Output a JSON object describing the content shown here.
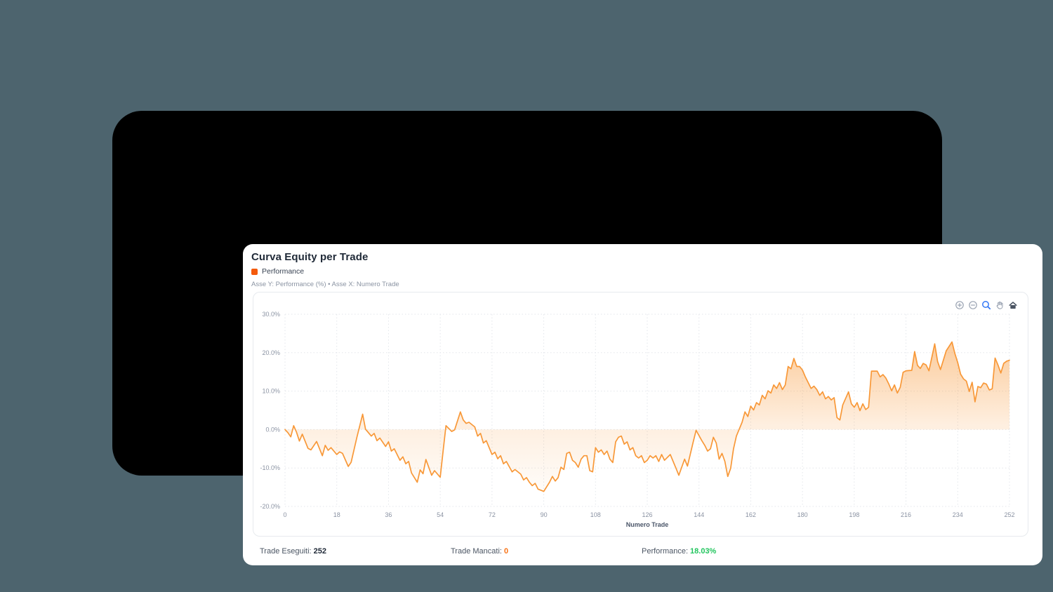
{
  "page": {
    "background_color": "#4d646e"
  },
  "header": {
    "title": "Curva Equity per Trade",
    "legend_label": "Performance",
    "legend_color": "#f45a0c",
    "subtitle": "Asse Y: Performance (%) • Asse X: Numero Trade"
  },
  "modebar": {
    "items": [
      "zoom-in",
      "zoom-out",
      "box-zoom",
      "pan",
      "reset-home"
    ],
    "active_color": "#3478f6",
    "idle_color": "#9aa3b2",
    "home_color": "#4a5462"
  },
  "footer": {
    "items": [
      {
        "label": "Trade Eseguiti:",
        "value": "252",
        "value_color": "#1f2937"
      },
      {
        "label": "Trade Mancati:",
        "value": "0",
        "value_color": "#f97316"
      },
      {
        "label": "Performance:",
        "value": "18.03%",
        "value_color": "#22c55e"
      }
    ]
  },
  "chart_data": {
    "type": "area",
    "title": "Curva Equity per Trade",
    "xlabel": "Numero Trade",
    "ylabel": "Performance (%)",
    "xlim": [
      0,
      252
    ],
    "ylim": [
      -20,
      30
    ],
    "x_ticks": [
      0,
      18,
      36,
      54,
      72,
      90,
      108,
      126,
      144,
      162,
      180,
      198,
      216,
      234,
      252
    ],
    "y_ticks": [
      -20,
      -10,
      0,
      10,
      20,
      30
    ],
    "grid": true,
    "legend_position": "top-left-header",
    "line_color": "#f89838",
    "fill_mode": "gradient-to-zero",
    "fill_color": "#f89838",
    "series": [
      {
        "name": "Performance",
        "points": [
          [
            0,
            0
          ],
          [
            1,
            -0.8
          ],
          [
            2,
            -1.9
          ],
          [
            3,
            1
          ],
          [
            4,
            -0.7
          ],
          [
            5,
            -3
          ],
          [
            6,
            -1.2
          ],
          [
            8,
            -4.9
          ],
          [
            9,
            -5.3
          ],
          [
            11,
            -3.1
          ],
          [
            13,
            -6.8
          ],
          [
            14,
            -4.1
          ],
          [
            15,
            -5.4
          ],
          [
            16,
            -4.7
          ],
          [
            18,
            -6.5
          ],
          [
            19,
            -5.8
          ],
          [
            20,
            -6.2
          ],
          [
            22,
            -9.6
          ],
          [
            23,
            -8.5
          ],
          [
            25,
            -2
          ],
          [
            27,
            4
          ],
          [
            28,
            0.1
          ],
          [
            30,
            -1.7
          ],
          [
            31,
            -1
          ],
          [
            32,
            -2.9
          ],
          [
            33,
            -2.2
          ],
          [
            35,
            -4.4
          ],
          [
            36,
            -3.2
          ],
          [
            37,
            -5.6
          ],
          [
            38,
            -5
          ],
          [
            40,
            -8
          ],
          [
            41,
            -7.1
          ],
          [
            42,
            -8.9
          ],
          [
            43,
            -8.3
          ],
          [
            44,
            -11.3
          ],
          [
            46,
            -13.7
          ],
          [
            47,
            -10.5
          ],
          [
            48,
            -11.5
          ],
          [
            49,
            -7.8
          ],
          [
            51,
            -11.9
          ],
          [
            52,
            -10.7
          ],
          [
            54,
            -12.4
          ],
          [
            55,
            -5.6
          ],
          [
            56,
            1
          ],
          [
            58,
            -0.5
          ],
          [
            59,
            -0.1
          ],
          [
            61,
            4.6
          ],
          [
            62,
            2.5
          ],
          [
            63,
            1.6
          ],
          [
            64,
            1.9
          ],
          [
            66,
            0.7
          ],
          [
            67,
            -1.7
          ],
          [
            68,
            -1
          ],
          [
            69,
            -3.5
          ],
          [
            70,
            -2.9
          ],
          [
            72,
            -6.5
          ],
          [
            73,
            -5.9
          ],
          [
            74,
            -7.6
          ],
          [
            75,
            -6.8
          ],
          [
            76,
            -8.9
          ],
          [
            77,
            -8.3
          ],
          [
            79,
            -11
          ],
          [
            80,
            -10.4
          ],
          [
            82,
            -11.6
          ],
          [
            83,
            -13.1
          ],
          [
            84,
            -12.5
          ],
          [
            85,
            -13.7
          ],
          [
            86,
            -14.6
          ],
          [
            87,
            -14
          ],
          [
            88,
            -15.5
          ],
          [
            90,
            -16.1
          ],
          [
            92,
            -13.7
          ],
          [
            93,
            -12.2
          ],
          [
            94,
            -13.4
          ],
          [
            95,
            -12.5
          ],
          [
            96,
            -9.8
          ],
          [
            97,
            -10.4
          ],
          [
            98,
            -6.2
          ],
          [
            99,
            -5.9
          ],
          [
            100,
            -8
          ],
          [
            101,
            -8.6
          ],
          [
            102,
            -9.8
          ],
          [
            103,
            -7.7
          ],
          [
            104,
            -6.8
          ],
          [
            105,
            -6.8
          ],
          [
            106,
            -10.7
          ],
          [
            107,
            -11
          ],
          [
            108,
            -4.7
          ],
          [
            109,
            -5.9
          ],
          [
            110,
            -5.3
          ],
          [
            111,
            -6.5
          ],
          [
            112,
            -5.6
          ],
          [
            113,
            -7.7
          ],
          [
            114,
            -8.6
          ],
          [
            115,
            -3.2
          ],
          [
            116,
            -2
          ],
          [
            117,
            -1.7
          ],
          [
            118,
            -3.8
          ],
          [
            119,
            -3.2
          ],
          [
            120,
            -5.3
          ],
          [
            121,
            -4.7
          ],
          [
            122,
            -6.8
          ],
          [
            123,
            -7.4
          ],
          [
            124,
            -6.8
          ],
          [
            125,
            -8.6
          ],
          [
            126,
            -8
          ],
          [
            127,
            -6.8
          ],
          [
            128,
            -7.4
          ],
          [
            129,
            -6.8
          ],
          [
            130,
            -8.3
          ],
          [
            131,
            -6.5
          ],
          [
            132,
            -8
          ],
          [
            134,
            -6.5
          ],
          [
            136,
            -10.1
          ],
          [
            137,
            -11.9
          ],
          [
            139,
            -7.7
          ],
          [
            140,
            -9.5
          ],
          [
            142,
            -3.2
          ],
          [
            143,
            -0.2
          ],
          [
            145,
            -2.9
          ],
          [
            146,
            -4.1
          ],
          [
            147,
            -5.6
          ],
          [
            148,
            -5
          ],
          [
            149,
            -2
          ],
          [
            150,
            -3.5
          ],
          [
            151,
            -7.7
          ],
          [
            152,
            -6.2
          ],
          [
            153,
            -8.3
          ],
          [
            154,
            -12.2
          ],
          [
            155,
            -10.1
          ],
          [
            156,
            -5
          ],
          [
            157,
            -1.7
          ],
          [
            158,
            0.1
          ],
          [
            159,
            1.9
          ],
          [
            160,
            4.6
          ],
          [
            161,
            3.4
          ],
          [
            162,
            6.1
          ],
          [
            163,
            5.1
          ],
          [
            164,
            7
          ],
          [
            165,
            6.4
          ],
          [
            166,
            8.9
          ],
          [
            167,
            8
          ],
          [
            168,
            10.1
          ],
          [
            169,
            9.5
          ],
          [
            170,
            11.6
          ],
          [
            171,
            10.7
          ],
          [
            172,
            12.2
          ],
          [
            173,
            10.4
          ],
          [
            174,
            11.6
          ],
          [
            175,
            16.4
          ],
          [
            176,
            15.8
          ],
          [
            177,
            18.5
          ],
          [
            178,
            16.4
          ],
          [
            179,
            16.4
          ],
          [
            180,
            15.5
          ],
          [
            181,
            13.7
          ],
          [
            182,
            12.2
          ],
          [
            183,
            10.7
          ],
          [
            184,
            11.3
          ],
          [
            185,
            10.4
          ],
          [
            186,
            8.9
          ],
          [
            187,
            9.8
          ],
          [
            188,
            8
          ],
          [
            189,
            8.6
          ],
          [
            190,
            7.7
          ],
          [
            191,
            8.3
          ],
          [
            192,
            3.1
          ],
          [
            193,
            2.5
          ],
          [
            194,
            6.4
          ],
          [
            196,
            9.8
          ],
          [
            197,
            6.7
          ],
          [
            198,
            5.8
          ],
          [
            199,
            7
          ],
          [
            200,
            4.9
          ],
          [
            201,
            6.7
          ],
          [
            202,
            5.2
          ],
          [
            203,
            5.8
          ],
          [
            204,
            15.2
          ],
          [
            206,
            15.2
          ],
          [
            207,
            13.7
          ],
          [
            208,
            14.3
          ],
          [
            209,
            13.4
          ],
          [
            210,
            11.9
          ],
          [
            211,
            10.1
          ],
          [
            212,
            11.6
          ],
          [
            213,
            9.5
          ],
          [
            214,
            11
          ],
          [
            215,
            14.9
          ],
          [
            216,
            15.3
          ],
          [
            218,
            15.4
          ],
          [
            219,
            20.3
          ],
          [
            220,
            16.7
          ],
          [
            221,
            15.9
          ],
          [
            222,
            17.2
          ],
          [
            223,
            16.8
          ],
          [
            224,
            15.3
          ],
          [
            226,
            22.3
          ],
          [
            227,
            17.7
          ],
          [
            228,
            15.6
          ],
          [
            230,
            20.5
          ],
          [
            232,
            22.8
          ],
          [
            233,
            19.8
          ],
          [
            234,
            17.4
          ],
          [
            235,
            14.4
          ],
          [
            236,
            13.2
          ],
          [
            237,
            12.6
          ],
          [
            238,
            9.9
          ],
          [
            239,
            12.3
          ],
          [
            240,
            7.2
          ],
          [
            241,
            11.2
          ],
          [
            242,
            10.9
          ],
          [
            243,
            12.1
          ],
          [
            244,
            11.8
          ],
          [
            245,
            10.3
          ],
          [
            246,
            10.6
          ],
          [
            247,
            18.6
          ],
          [
            248,
            16.8
          ],
          [
            249,
            14.7
          ],
          [
            250,
            17.2
          ],
          [
            251,
            17.8
          ],
          [
            252,
            18.03
          ]
        ]
      }
    ]
  }
}
